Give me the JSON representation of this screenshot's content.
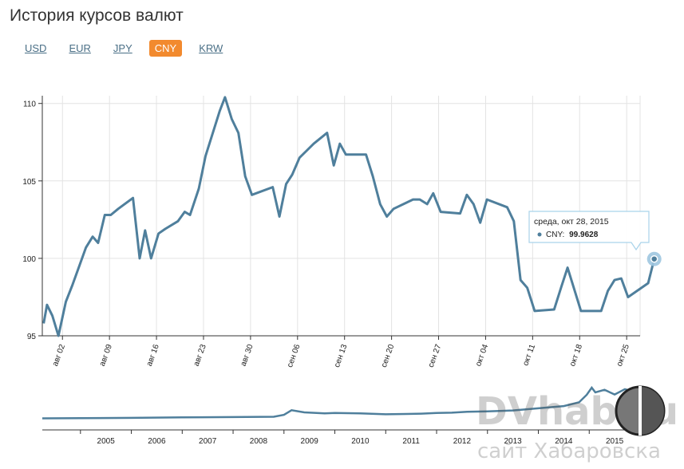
{
  "header": {
    "title": "История курсов валют"
  },
  "tabs": [
    {
      "label": "USD",
      "active": false
    },
    {
      "label": "EUR",
      "active": false
    },
    {
      "label": "JPY",
      "active": false
    },
    {
      "label": "CNY",
      "active": true
    },
    {
      "label": "KRW",
      "active": false
    }
  ],
  "colors": {
    "line": "#4f7f9c",
    "active_tab": "#f28a2e",
    "link": "#4a6f86"
  },
  "tooltip": {
    "date": "среда, окт 28, 2015",
    "series": "CNY:",
    "value": "99.9628"
  },
  "watermark": {
    "brand": "DVhab.ru",
    "caption": "сайт Хабаровска"
  },
  "chart_data": {
    "type": "line",
    "series_name": "CNY",
    "y_range": [
      95,
      110.5
    ],
    "y_ticks": [
      {
        "v": 95,
        "label": "95"
      },
      {
        "v": 100,
        "label": "100"
      },
      {
        "v": 105,
        "label": "105"
      },
      {
        "v": 110,
        "label": "110"
      }
    ],
    "x_range": [
      0,
      89
    ],
    "x_ticks": [
      {
        "day": 3,
        "label": "авг 02"
      },
      {
        "day": 10,
        "label": "авг 09"
      },
      {
        "day": 17,
        "label": "авг 16"
      },
      {
        "day": 24,
        "label": "авг 23"
      },
      {
        "day": 31,
        "label": "авг 30"
      },
      {
        "day": 38,
        "label": "сен 06"
      },
      {
        "day": 45,
        "label": "сен 13"
      },
      {
        "day": 52,
        "label": "сен 20"
      },
      {
        "day": 59,
        "label": "сен 27"
      },
      {
        "day": 66,
        "label": "окт 04"
      },
      {
        "day": 73,
        "label": "окт 11"
      },
      {
        "day": 80,
        "label": "окт 18"
      },
      {
        "day": 87,
        "label": "окт 25"
      }
    ],
    "grid": true,
    "points": [
      [
        0.2,
        95.8
      ],
      [
        0.7,
        97.0
      ],
      [
        1.5,
        96.3
      ],
      [
        2.4,
        95.0
      ],
      [
        3.5,
        97.2
      ],
      [
        4.5,
        98.3
      ],
      [
        5.5,
        99.5
      ],
      [
        6.5,
        100.7
      ],
      [
        7.5,
        101.4
      ],
      [
        8.3,
        101.0
      ],
      [
        9.3,
        102.8
      ],
      [
        10.2,
        102.8
      ],
      [
        11.3,
        103.2
      ],
      [
        13.5,
        103.9
      ],
      [
        14.5,
        100.0
      ],
      [
        15.3,
        101.8
      ],
      [
        16.2,
        100.0
      ],
      [
        17.3,
        101.6
      ],
      [
        18.3,
        101.9
      ],
      [
        20.2,
        102.4
      ],
      [
        21.2,
        103.0
      ],
      [
        22.0,
        102.8
      ],
      [
        23.3,
        104.5
      ],
      [
        24.3,
        106.6
      ],
      [
        26.4,
        109.5
      ],
      [
        27.2,
        110.4
      ],
      [
        28.2,
        109.0
      ],
      [
        29.2,
        108.1
      ],
      [
        30.2,
        105.3
      ],
      [
        31.2,
        104.1
      ],
      [
        34.3,
        104.6
      ],
      [
        35.3,
        102.7
      ],
      [
        36.3,
        104.8
      ],
      [
        37.2,
        105.4
      ],
      [
        38.3,
        106.5
      ],
      [
        40.4,
        107.4
      ],
      [
        42.4,
        108.1
      ],
      [
        43.4,
        106.0
      ],
      [
        44.3,
        107.4
      ],
      [
        45.2,
        106.7
      ],
      [
        48.2,
        106.7
      ],
      [
        49.2,
        105.3
      ],
      [
        50.3,
        103.5
      ],
      [
        51.3,
        102.7
      ],
      [
        52.3,
        103.2
      ],
      [
        55.2,
        103.8
      ],
      [
        56.2,
        103.8
      ],
      [
        57.3,
        103.5
      ],
      [
        58.2,
        104.2
      ],
      [
        59.3,
        103.0
      ],
      [
        62.2,
        102.9
      ],
      [
        63.2,
        104.1
      ],
      [
        64.2,
        103.5
      ],
      [
        65.2,
        102.3
      ],
      [
        66.2,
        103.8
      ],
      [
        69.2,
        103.3
      ],
      [
        70.2,
        102.4
      ],
      [
        71.2,
        98.6
      ],
      [
        72.2,
        98.1
      ],
      [
        73.3,
        96.6
      ],
      [
        76.2,
        96.7
      ],
      [
        77.3,
        98.2
      ],
      [
        78.2,
        99.4
      ],
      [
        79.2,
        98.0
      ],
      [
        80.2,
        96.6
      ],
      [
        83.2,
        96.6
      ],
      [
        84.2,
        97.9
      ],
      [
        85.2,
        98.6
      ],
      [
        86.2,
        98.7
      ],
      [
        87.2,
        97.5
      ],
      [
        90.2,
        98.4
      ],
      [
        91.1,
        99.96
      ]
    ],
    "navigator": {
      "x_labels": [
        "2005",
        "2006",
        "2007",
        "2008",
        "2009",
        "2010",
        "2011",
        "2012",
        "2013",
        "2014",
        "2015"
      ],
      "x_range": [
        2004.25,
        2016.0
      ],
      "points": [
        [
          2004.25,
          3.7
        ],
        [
          2005.0,
          3.75
        ],
        [
          2006.0,
          3.85
        ],
        [
          2007.0,
          4.0
        ],
        [
          2008.0,
          4.1
        ],
        [
          2008.8,
          4.2
        ],
        [
          2009.0,
          4.8
        ],
        [
          2009.15,
          6.3
        ],
        [
          2009.4,
          5.6
        ],
        [
          2009.8,
          5.3
        ],
        [
          2010.0,
          5.4
        ],
        [
          2010.5,
          5.3
        ],
        [
          2011.0,
          5.0
        ],
        [
          2011.4,
          5.1
        ],
        [
          2011.7,
          5.2
        ],
        [
          2012.0,
          5.4
        ],
        [
          2012.3,
          5.5
        ],
        [
          2012.6,
          5.8
        ],
        [
          2013.0,
          5.9
        ],
        [
          2013.5,
          6.2
        ],
        [
          2014.0,
          6.9
        ],
        [
          2014.5,
          7.6
        ],
        [
          2014.8,
          8.8
        ],
        [
          2014.95,
          11.2
        ],
        [
          2015.05,
          13.5
        ],
        [
          2015.12,
          12.0
        ],
        [
          2015.3,
          12.8
        ],
        [
          2015.5,
          11.3
        ],
        [
          2015.7,
          13.0
        ],
        [
          2015.85,
          12.4
        ],
        [
          2016.0,
          12.1
        ]
      ]
    }
  }
}
